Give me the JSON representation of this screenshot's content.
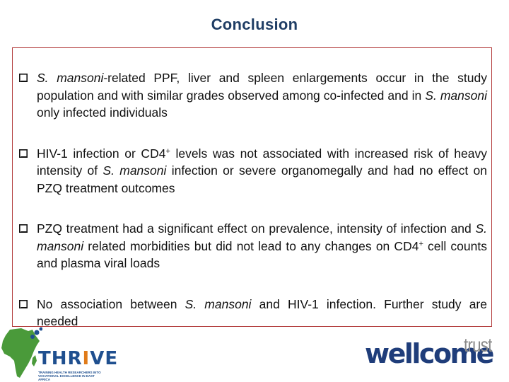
{
  "slide": {
    "title": "Conclusion",
    "bullets": [
      {
        "parts": [
          {
            "t": "S. mansoni",
            "i": true
          },
          {
            "t": "-related PPF, liver and spleen enlargements occur in the study population and with similar grades observed among co-infected and in "
          },
          {
            "t": "S. mansoni",
            "i": true
          },
          {
            "t": " only infected individuals"
          }
        ]
      },
      {
        "parts": [
          {
            "t": "HIV-1 infection or CD4"
          },
          {
            "t": "+",
            "sup": true
          },
          {
            "t": " levels was not associated with increased risk of heavy intensity of "
          },
          {
            "t": "S. mansoni",
            "i": true
          },
          {
            "t": " infection or severe organomegally and had no effect on PZQ treatment outcomes"
          }
        ]
      },
      {
        "parts": [
          {
            "t": "PZQ treatment had a significant effect on prevalence, intensity of infection and "
          },
          {
            "t": "S. mansoni",
            "i": true
          },
          {
            "t": " related morbidities but did not lead to any changes on CD4"
          },
          {
            "t": "+",
            "sup": true
          },
          {
            "t": " cell counts and plasma viral loads"
          }
        ]
      },
      {
        "parts": [
          {
            "t": "No association between "
          },
          {
            "t": "S. mansoni",
            "i": true
          },
          {
            "t": " and HIV-1 infection. Further study are needed"
          }
        ]
      }
    ]
  },
  "logos": {
    "thrive": {
      "word_a": "THR",
      "word_i": "I",
      "word_b": "VE",
      "tagline": "TRAINING HEALTH RESEARCHERS INTO VOCATIONAL EXCELLENCE IN EAST AFRICA"
    },
    "wellcome": {
      "main": "wellcome",
      "second": "trust"
    }
  },
  "colors": {
    "title": "#1f3d64",
    "box_border": "#b23a3a",
    "thrive_blue": "#1f4f8f",
    "thrive_green": "#4a9a3a",
    "thrive_orange": "#e07b1a",
    "wellcome_blue": "#1f3d7a",
    "trust_grey": "#8a8a8a"
  }
}
